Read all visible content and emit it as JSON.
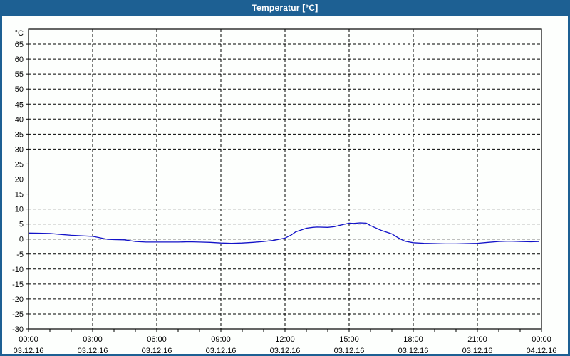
{
  "window": {
    "title": "Temperatur [°C]",
    "titlebar_color": "#1d6093",
    "border_color": "#1d6093",
    "content_background": "#fdfffd"
  },
  "chart_data": {
    "type": "line",
    "title": "Temperatur [°C]",
    "y_unit_label": "°C",
    "ylabel": "",
    "xlabel": "",
    "ylim": [
      -30,
      70
    ],
    "y_tick_step": 5,
    "y_tick_labels": [
      "-30",
      "-25",
      "-20",
      "-15",
      "-10",
      "-5",
      "0",
      "5",
      "10",
      "15",
      "20",
      "25",
      "30",
      "35",
      "40",
      "45",
      "50",
      "55",
      "60",
      "65"
    ],
    "xlim_hours": [
      0,
      24
    ],
    "x_minor_tick_step_hours": 1,
    "x_major_tick_step_hours": 3,
    "x_ticks": [
      {
        "hour": 0,
        "time": "00:00",
        "date": "03.12.16"
      },
      {
        "hour": 3,
        "time": "03:00",
        "date": "03.12.16"
      },
      {
        "hour": 6,
        "time": "06:00",
        "date": "03.12.16"
      },
      {
        "hour": 9,
        "time": "09:00",
        "date": "03.12.16"
      },
      {
        "hour": 12,
        "time": "12:00",
        "date": "03.12.16"
      },
      {
        "hour": 15,
        "time": "15:00",
        "date": "03.12.16"
      },
      {
        "hour": 18,
        "time": "18:00",
        "date": "03.12.16"
      },
      {
        "hour": 21,
        "time": "21:00",
        "date": "03.12.16"
      },
      {
        "hour": 24,
        "time": "00:00",
        "date": "04.12.16"
      }
    ],
    "grid": true,
    "grid_style": "dashed",
    "legend": "none",
    "colors": {
      "line": "#1212c8",
      "grid": "#000000",
      "axis": "#000000",
      "plot_background": "#fdfffd"
    },
    "series": [
      {
        "name": "Temperatur",
        "unit": "°C",
        "points": [
          [
            0,
            2.0
          ],
          [
            0.5,
            1.95
          ],
          [
            1,
            1.85
          ],
          [
            1.5,
            1.55
          ],
          [
            2,
            1.25
          ],
          [
            2.5,
            1.1
          ],
          [
            3,
            0.9
          ],
          [
            3.3,
            0.5
          ],
          [
            3.7,
            -0.1
          ],
          [
            4,
            -0.2
          ],
          [
            4.5,
            -0.25
          ],
          [
            5,
            -0.8
          ],
          [
            5.5,
            -1.0
          ],
          [
            6,
            -1.0
          ],
          [
            6.5,
            -1.0
          ],
          [
            7,
            -1.0
          ],
          [
            7.5,
            -0.9
          ],
          [
            8,
            -1.0
          ],
          [
            8.5,
            -1.1
          ],
          [
            9,
            -1.3
          ],
          [
            9.5,
            -1.4
          ],
          [
            10,
            -1.3
          ],
          [
            10.5,
            -1.1
          ],
          [
            11,
            -0.8
          ],
          [
            11.5,
            -0.4
          ],
          [
            12,
            0.3
          ],
          [
            12.3,
            1.4
          ],
          [
            12.5,
            2.4
          ],
          [
            13,
            3.6
          ],
          [
            13.3,
            3.9
          ],
          [
            13.5,
            4.0
          ],
          [
            14,
            3.9
          ],
          [
            14.3,
            4.1
          ],
          [
            14.7,
            4.8
          ],
          [
            15,
            5.3
          ],
          [
            15.2,
            5.2
          ],
          [
            15.5,
            5.4
          ],
          [
            15.8,
            5.3
          ],
          [
            16,
            4.5
          ],
          [
            16.5,
            2.9
          ],
          [
            17,
            1.7
          ],
          [
            17.3,
            0.4
          ],
          [
            17.6,
            -0.7
          ],
          [
            18,
            -1.2
          ],
          [
            18.5,
            -1.4
          ],
          [
            19,
            -1.5
          ],
          [
            19.5,
            -1.6
          ],
          [
            20,
            -1.6
          ],
          [
            20.5,
            -1.5
          ],
          [
            21,
            -1.4
          ],
          [
            21.5,
            -1.1
          ],
          [
            22,
            -0.8
          ],
          [
            22.5,
            -0.7
          ],
          [
            23,
            -0.8
          ],
          [
            23.5,
            -0.9
          ],
          [
            23.9,
            -0.8
          ]
        ]
      }
    ]
  }
}
